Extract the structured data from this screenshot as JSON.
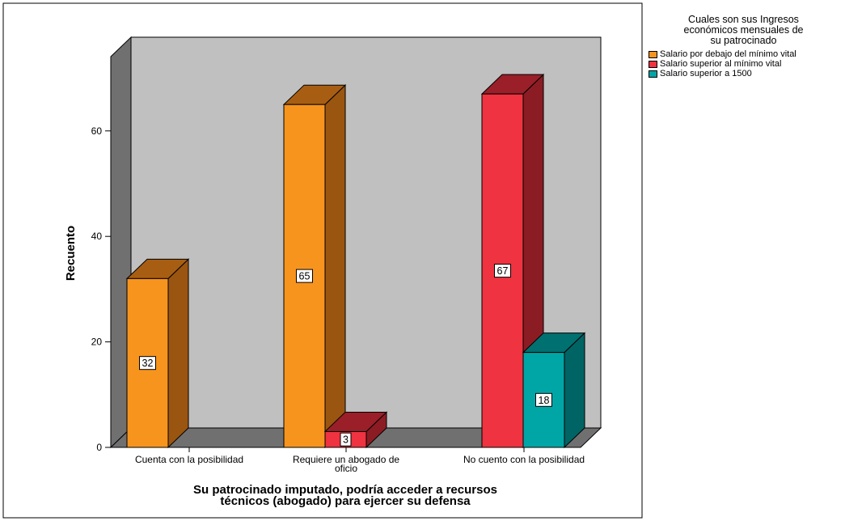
{
  "chart_data": {
    "type": "bar",
    "title": "",
    "xlabel": "Su patrocinado imputado, podría acceder a recursos técnicos (abogado) para ejercer su defensa",
    "xlabel_lines": [
      "Su patrocinado imputado, podría acceder a recursos",
      "técnicos (abogado) para ejercer su defensa"
    ],
    "ylabel": "Recuento",
    "ylim": [
      0,
      70
    ],
    "yticks": [
      0,
      20,
      40,
      60
    ],
    "categories": [
      "Cuenta con la posibilidad",
      "Requiere un abogado de oficio",
      "No cuento con la posibilidad"
    ],
    "category_label_lines": [
      [
        "Cuenta con la posibilidad"
      ],
      [
        "Requiere un abogado de",
        "oficio"
      ],
      [
        "No cuento con la posibilidad"
      ]
    ],
    "legend_title": "Cuales son sus Ingresos económicos mensuales de su patrocinado",
    "legend_title_lines": [
      "Cuales son sus Ingresos",
      "económicos mensuales de",
      "su patrocinado"
    ],
    "legend_position": "top-right",
    "three_d": true,
    "grid": false,
    "series": [
      {
        "name": "Salario por debajo del mínimo vital",
        "color": "#F7941E",
        "side_color": "#9A5510",
        "top_color": "#A85E12",
        "values": [
          32,
          65,
          null
        ]
      },
      {
        "name": "Salario superior al mínimo vital",
        "color": "#EF3340",
        "side_color": "#8C1C24",
        "top_color": "#9A1F28",
        "values": [
          null,
          3,
          67
        ]
      },
      {
        "name": "Salario superior a 1500",
        "color": "#00A6A6",
        "side_color": "#006464",
        "top_color": "#007070",
        "values": [
          null,
          null,
          18
        ]
      }
    ],
    "data_labels": true
  }
}
